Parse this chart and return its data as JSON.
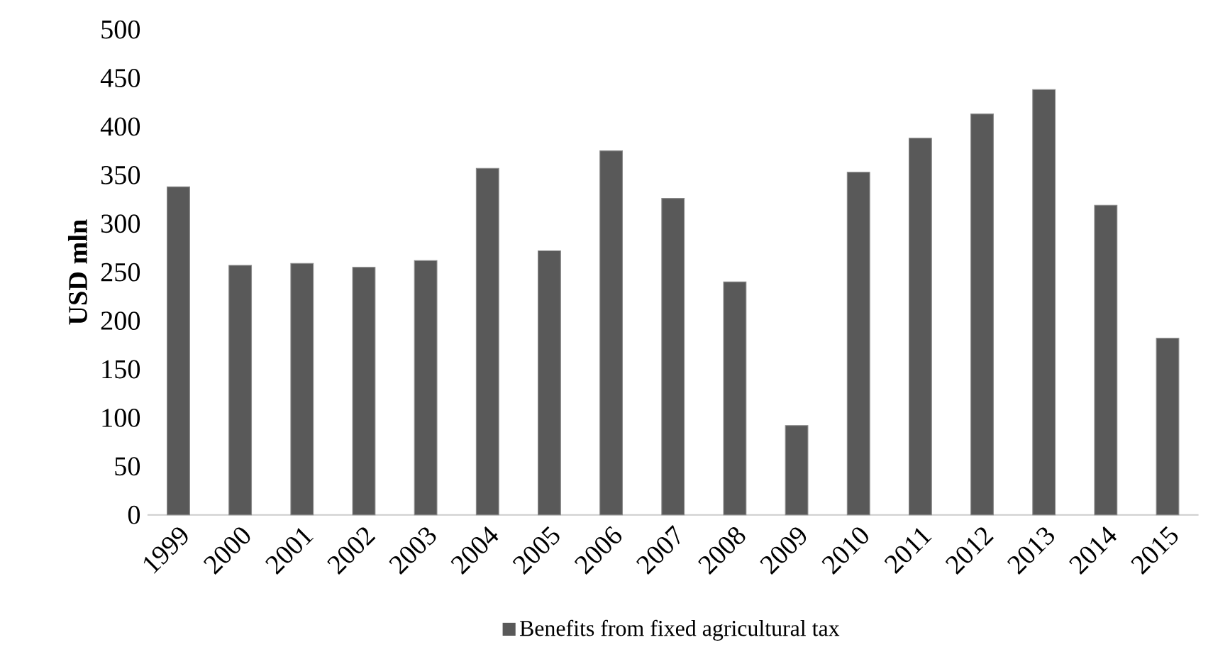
{
  "chart_data": {
    "type": "bar",
    "ylabel": "USD mln",
    "categories": [
      "1999",
      "2000",
      "2001",
      "2002",
      "2003",
      "2004",
      "2005",
      "2006",
      "2007",
      "2008",
      "2009",
      "2010",
      "2011",
      "2012",
      "2013",
      "2014",
      "2015"
    ],
    "series": [
      {
        "name": "Benefits from fixed agricultural tax",
        "color": "#595959",
        "values": [
          338,
          257,
          259,
          255,
          262,
          357,
          272,
          375,
          326,
          240,
          92,
          353,
          388,
          413,
          438,
          319,
          182
        ]
      }
    ],
    "ylim": [
      0,
      500
    ],
    "yticks": [
      0,
      50,
      100,
      150,
      200,
      250,
      300,
      350,
      400,
      450,
      500
    ],
    "legend": "bottom"
  }
}
